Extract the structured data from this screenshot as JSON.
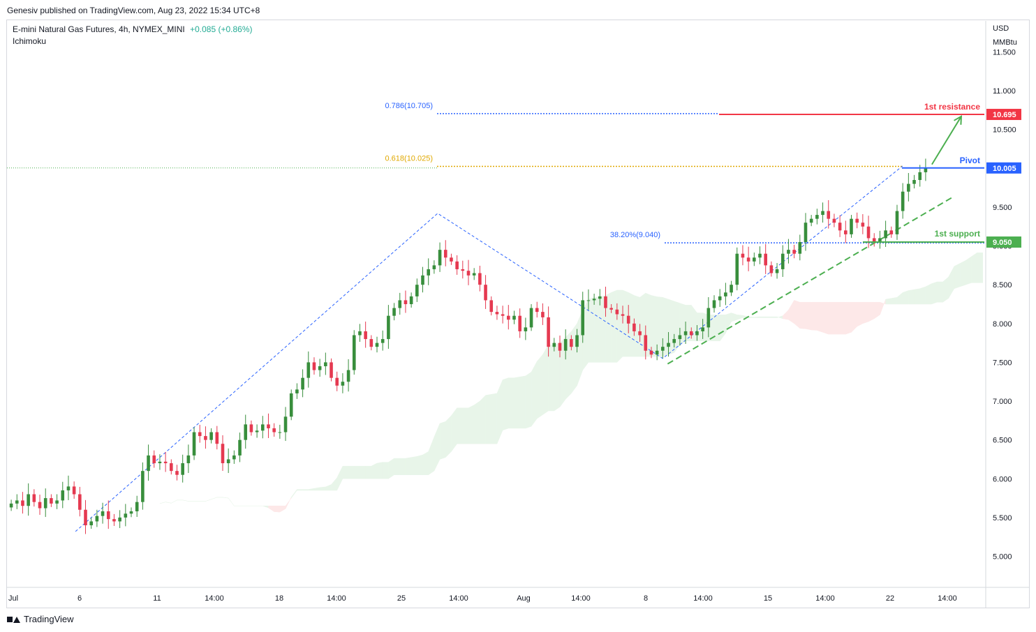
{
  "header": {
    "publisher": "Genesiv published on TradingView.com, Aug 23, 2022 15:34 UTC+8"
  },
  "legend": {
    "symbol": "E-mini Natural Gas Futures, 4h, NYMEX_MINI",
    "change": "+0.085 (+0.86%)",
    "indicator": "Ichimoku"
  },
  "footer": {
    "brand": "TradingView"
  },
  "colors": {
    "up": "#26a69a",
    "down": "#ef5350",
    "bull": "#388e3c",
    "bear": "#e53950",
    "resistance": "#f23645",
    "support": "#4caf50",
    "pivot": "#2962ff",
    "fib_blue": "#2962ff",
    "fib_gold": "#e0a800",
    "cloud_bull": "#e8f5e9",
    "cloud_bear": "#fde8e8"
  },
  "chart_data": {
    "type": "candlestick",
    "currency": "USD",
    "unit": "MMBtu",
    "y_ticks": [
      "11.500",
      "11.000",
      "10.500",
      "10.000",
      "9.500",
      "9.000",
      "8.500",
      "8.000",
      "7.500",
      "7.000",
      "6.500",
      "6.000",
      "5.500",
      "5.000"
    ],
    "x_ticks": [
      "Jul",
      "6",
      "11",
      "14:00",
      "18",
      "14:00",
      "25",
      "14:00",
      "Aug",
      "14:00",
      "8",
      "14:00",
      "15",
      "14:00",
      "22",
      "14:00"
    ],
    "ylim": [
      4.6,
      11.9
    ],
    "levels": {
      "resistance": {
        "label": "1st resistance",
        "value": "10.695"
      },
      "pivot": {
        "label": "Pivot",
        "value": "10.005"
      },
      "support": {
        "label": "1st support",
        "value": "9.050"
      },
      "last_price": 10.005
    },
    "fibonacci": [
      {
        "label": "0.786(10.705)",
        "value": 10.705
      },
      {
        "label": "0.618(10.025)",
        "value": 10.025
      },
      {
        "label": "38.20%(9.040)",
        "value": 9.04
      }
    ],
    "swings": [
      {
        "x": 0.07,
        "y": 5.32
      },
      {
        "x": 0.44,
        "y": 9.42
      },
      {
        "x": 0.67,
        "y": 7.55
      },
      {
        "x": 0.915,
        "y": 10.03
      }
    ],
    "trendline": {
      "from": [
        0.675,
        7.48
      ],
      "to": [
        0.965,
        9.62
      ]
    },
    "projection": {
      "from": [
        0.945,
        10.05
      ],
      "to": [
        0.975,
        10.67
      ]
    },
    "closes": [
      5.68,
      5.72,
      5.65,
      5.8,
      5.7,
      5.62,
      5.75,
      5.68,
      5.72,
      5.85,
      5.9,
      5.8,
      5.6,
      5.4,
      5.45,
      5.52,
      5.58,
      5.48,
      5.45,
      5.5,
      5.55,
      5.58,
      5.7,
      6.1,
      6.3,
      6.2,
      6.22,
      6.2,
      6.1,
      6.05,
      6.2,
      6.3,
      6.6,
      6.55,
      6.5,
      6.6,
      6.45,
      6.2,
      6.25,
      6.3,
      6.5,
      6.7,
      6.6,
      6.62,
      6.7,
      6.65,
      6.6,
      6.6,
      6.8,
      7.1,
      7.15,
      7.3,
      7.5,
      7.4,
      7.45,
      7.5,
      7.3,
      7.2,
      7.25,
      7.4,
      7.85,
      7.9,
      7.8,
      7.7,
      7.75,
      7.8,
      8.1,
      8.2,
      8.3,
      8.25,
      8.35,
      8.5,
      8.62,
      8.7,
      8.75,
      8.95,
      8.85,
      8.8,
      8.7,
      8.68,
      8.62,
      8.65,
      8.5,
      8.3,
      8.15,
      8.12,
      8.1,
      8.05,
      8.1,
      7.9,
      7.95,
      8.2,
      8.15,
      8.08,
      7.7,
      7.75,
      7.65,
      7.8,
      7.7,
      7.85,
      8.3,
      8.3,
      8.32,
      8.35,
      8.2,
      8.18,
      8.12,
      8.1,
      8.0,
      7.9,
      7.85,
      7.65,
      7.6,
      7.65,
      7.7,
      7.75,
      7.8,
      7.85,
      7.9,
      7.85,
      7.9,
      7.95,
      8.2,
      8.3,
      8.35,
      8.4,
      8.5,
      8.9,
      8.85,
      8.8,
      8.85,
      8.9,
      8.75,
      8.65,
      8.7,
      8.9,
      8.95,
      8.9,
      9.05,
      9.3,
      9.35,
      9.4,
      9.45,
      9.35,
      9.3,
      9.2,
      9.15,
      9.35,
      9.3,
      9.25,
      9.1,
      9.05,
      9.1,
      9.2,
      9.15,
      9.45,
      9.7,
      9.8,
      9.85,
      9.95,
      10.0
    ]
  }
}
